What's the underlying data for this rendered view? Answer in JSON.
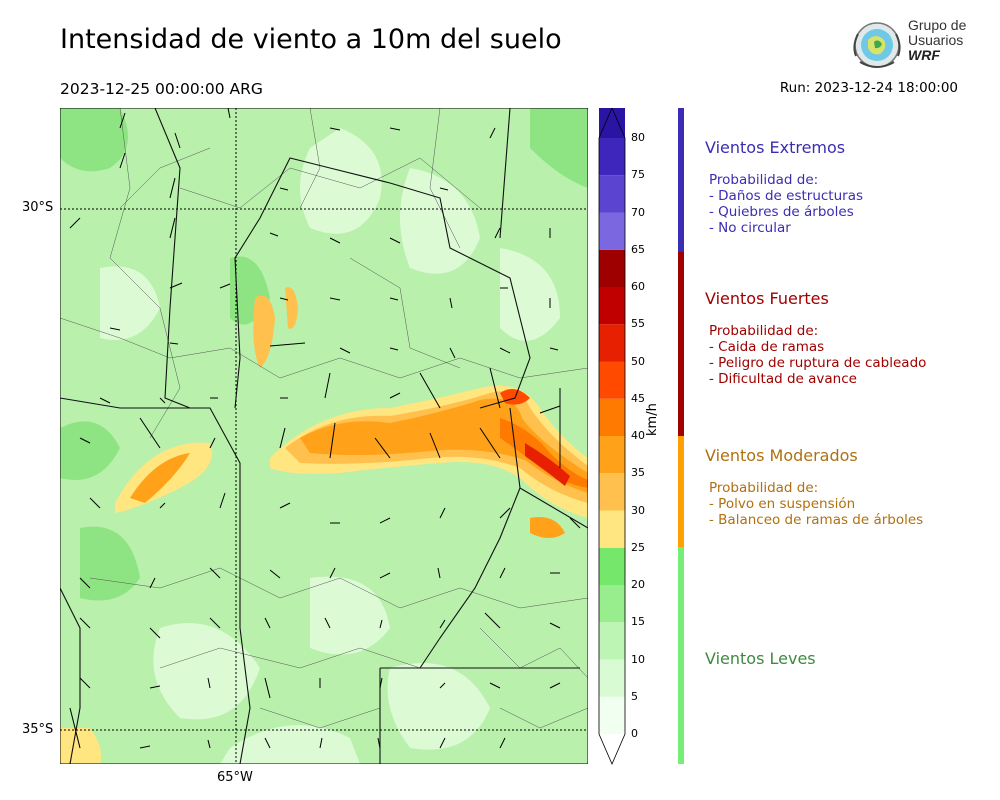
{
  "title": "Intensidad de viento a 10m del suelo",
  "valid_time": "2023-12-25 00:00:00 ARG",
  "run_time": "Run: 2023-12-24 18:00:00",
  "logo": {
    "line1": "Grupo de",
    "line2": "Usuarios",
    "line3": "WRF"
  },
  "map": {
    "lat_labels": [
      "30°S",
      "35°S"
    ],
    "lon_labels": [
      "65°W"
    ]
  },
  "colorbar": {
    "unit": "km/h",
    "ticks": [
      "0",
      "5",
      "10",
      "15",
      "20",
      "25",
      "30",
      "35",
      "40",
      "45",
      "50",
      "55",
      "60",
      "65",
      "70",
      "75",
      "80"
    ],
    "colors": [
      "#f0fff0",
      "#d9fbd4",
      "#bdf5b4",
      "#98ee8c",
      "#75e86c",
      "#ffe680",
      "#ffc04d",
      "#ffa21a",
      "#ff7a00",
      "#ff4a00",
      "#e62000",
      "#c00000",
      "#9e0000",
      "#7b68e0",
      "#5a44d0",
      "#3e25bb",
      "#2a14a4"
    ]
  },
  "legend": [
    {
      "title": "Vientos Extremos",
      "color": "#3b2db3",
      "lines": [
        "Probabilidad de:",
        "- Daños de estructuras",
        "- Quiebres de árboles",
        "- No circular"
      ]
    },
    {
      "title": "Vientos Fuertes",
      "color": "#a00000",
      "lines": [
        "Probabilidad de:",
        "- Caida de ramas",
        "- Peligro de ruptura de cableado",
        "- Dificultad de avance"
      ]
    },
    {
      "title": "Vientos Moderados",
      "color": "#b07010",
      "lines": [
        "Probabilidad de:",
        "- Polvo en suspensión",
        "- Balanceo de ramas de árboles"
      ]
    },
    {
      "title": "Vientos Leves",
      "color": "#3e8a3e",
      "lines": []
    }
  ],
  "legend_bar_colors": [
    "#3b2db3",
    "#a00000",
    "#ffa000",
    "#77ee77"
  ]
}
